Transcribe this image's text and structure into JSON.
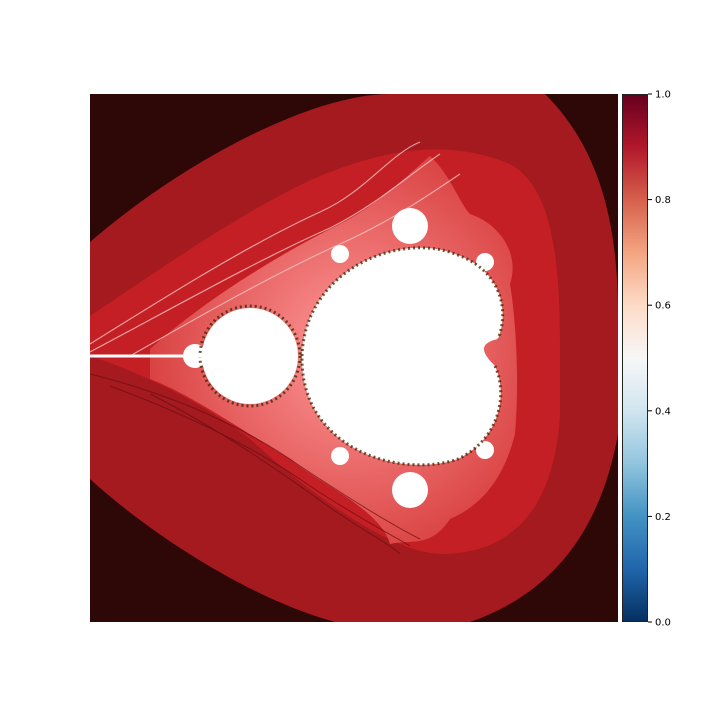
{
  "chart_data": {
    "type": "heatmap",
    "title": "",
    "xlabel": "",
    "ylabel": "",
    "axes_visible": false,
    "image_description_key": "mandelbrot-set-shaded-escape-time",
    "colormap": "RdBu_r",
    "colorbar": {
      "range": [
        0.0,
        1.0
      ],
      "ticks": [
        0.0,
        0.2,
        0.4,
        0.6,
        0.8,
        1.0
      ],
      "tick_labels": [
        "0.0",
        "0.2",
        "0.4",
        "0.6",
        "0.8",
        "1.0"
      ]
    },
    "colors": {
      "background": "#2e0707",
      "outer_band": "#a41a1f",
      "mid_band": "#c41f24",
      "inner_band": "#d63a3a",
      "set_interior": "#ffffff"
    }
  }
}
